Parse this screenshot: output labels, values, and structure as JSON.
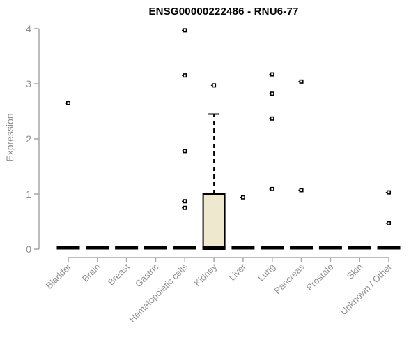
{
  "chart_data": {
    "type": "boxplot",
    "title": "ENSG00000222486 - RNU6-77",
    "ylabel": "Expression",
    "xlabel": "",
    "ylim": [
      0,
      4
    ],
    "yticks": [
      "0",
      "1",
      "2",
      "3",
      "4"
    ],
    "grid": false,
    "legend": null,
    "categories": [
      "Bladder",
      "Brain",
      "Breast",
      "Gastric",
      "Hematopoietic cells",
      "Kidney",
      "Liver",
      "Lung",
      "Pancreas",
      "Prostate",
      "Skin",
      "Unknown / Other"
    ],
    "boxes": [
      {
        "category": "Bladder",
        "q1": 0,
        "median": 0,
        "q3": 0,
        "whisker_low": 0,
        "whisker_high": 0,
        "outliers": [
          2.65
        ]
      },
      {
        "category": "Brain",
        "q1": 0,
        "median": 0,
        "q3": 0,
        "whisker_low": 0,
        "whisker_high": 0,
        "outliers": []
      },
      {
        "category": "Breast",
        "q1": 0,
        "median": 0,
        "q3": 0,
        "whisker_low": 0,
        "whisker_high": 0,
        "outliers": []
      },
      {
        "category": "Gastric",
        "q1": 0,
        "median": 0,
        "q3": 0,
        "whisker_low": 0,
        "whisker_high": 0,
        "outliers": []
      },
      {
        "category": "Hematopoietic cells",
        "q1": 0,
        "median": 0,
        "q3": 0,
        "whisker_low": 0,
        "whisker_high": 0,
        "outliers": [
          3.97,
          3.15,
          1.78,
          0.87,
          0.75
        ]
      },
      {
        "category": "Kidney",
        "q1": 0,
        "median": 0,
        "q3": 1.0,
        "whisker_low": 0,
        "whisker_high": 2.45,
        "outliers": [
          2.97
        ]
      },
      {
        "category": "Liver",
        "q1": 0,
        "median": 0,
        "q3": 0,
        "whisker_low": 0,
        "whisker_high": 0,
        "outliers": [
          0.94
        ]
      },
      {
        "category": "Lung",
        "q1": 0,
        "median": 0,
        "q3": 0,
        "whisker_low": 0,
        "whisker_high": 0,
        "outliers": [
          3.17,
          2.82,
          2.37,
          1.09
        ]
      },
      {
        "category": "Pancreas",
        "q1": 0,
        "median": 0,
        "q3": 0,
        "whisker_low": 0,
        "whisker_high": 0,
        "outliers": [
          3.04,
          1.07
        ]
      },
      {
        "category": "Prostate",
        "q1": 0,
        "median": 0,
        "q3": 0,
        "whisker_low": 0,
        "whisker_high": 0,
        "outliers": []
      },
      {
        "category": "Skin",
        "q1": 0,
        "median": 0,
        "q3": 0,
        "whisker_low": 0,
        "whisker_high": 0,
        "outliers": []
      },
      {
        "category": "Unknown / Other",
        "q1": 0,
        "median": 0,
        "q3": 0,
        "whisker_low": 0,
        "whisker_high": 0,
        "outliers": [
          1.03,
          0.47
        ]
      }
    ],
    "colors": {
      "box_fill": "#EDE8CE",
      "box_stroke": "#000000",
      "median_color": "#000000",
      "outlier_stroke": "#000000",
      "outlier_fill": "#FFFFFF",
      "axis_color": "#A6A6A6",
      "tick_text_color": "#8F8F8F",
      "title_color": "#000000"
    }
  }
}
